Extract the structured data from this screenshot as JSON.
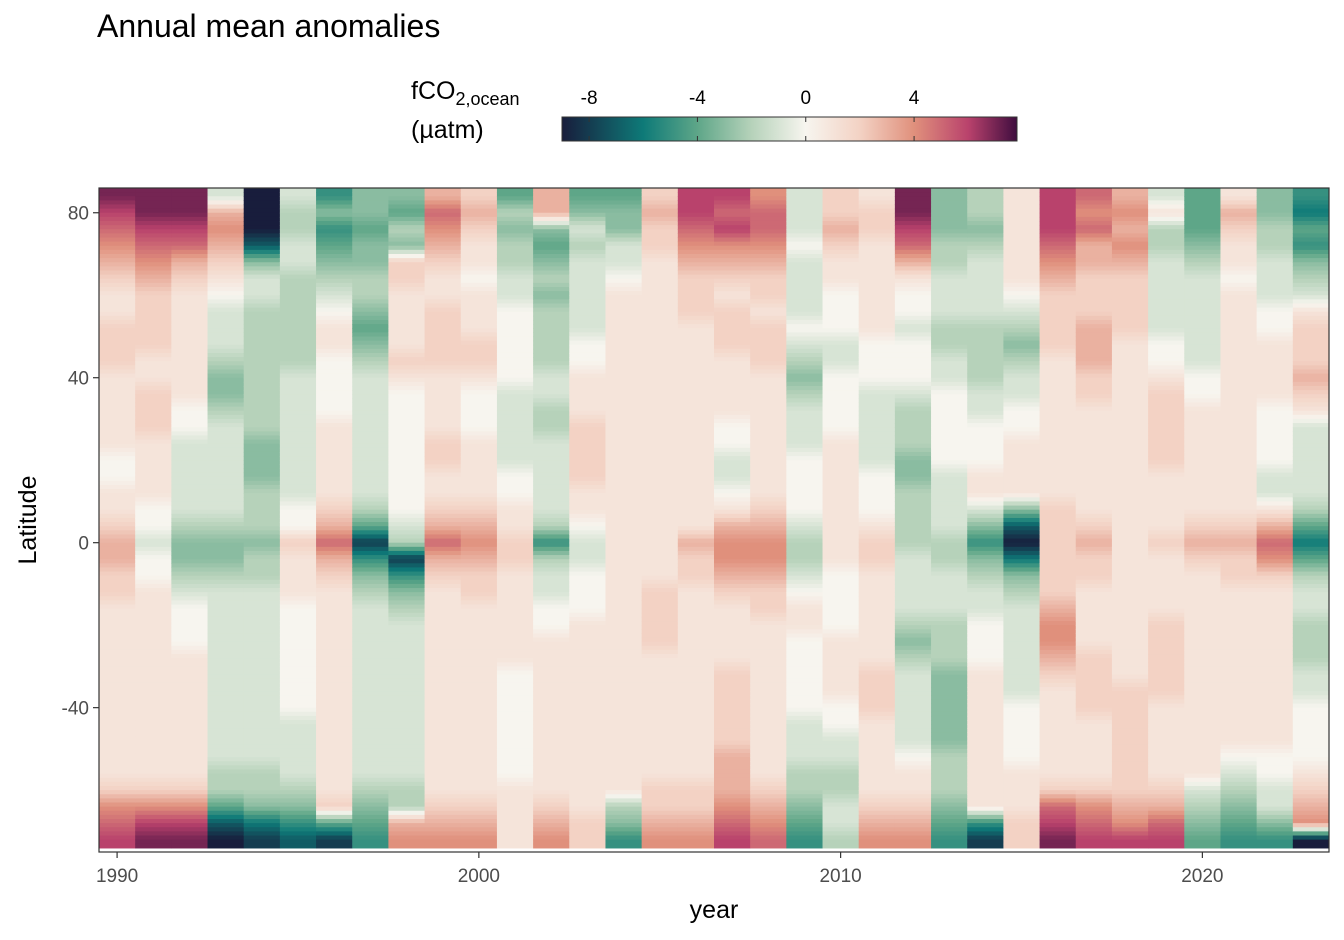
{
  "title": "Annual mean anomalies",
  "legend": {
    "title_main": "fCO",
    "title_sub": "2,ocean",
    "title_unit": "(µatm)",
    "ticks": [
      "-8",
      "-4",
      "0",
      "4"
    ],
    "range": [
      -9,
      7.8
    ]
  },
  "colors": {
    "scale": [
      "#181d3c",
      "#0e7a78",
      "#5ea688",
      "#b6d2ba",
      "#f7f5ef",
      "#f3d2c4",
      "#e0907c",
      "#b9426c",
      "#3f0d3f"
    ],
    "scale_values": [
      -9,
      -6,
      -4,
      -2,
      0,
      2,
      4,
      6,
      7.8
    ]
  },
  "chart_data": {
    "type": "heatmap",
    "title": "Annual mean anomalies",
    "xlabel": "year",
    "ylabel": "Latitude",
    "xlim": [
      1989.5,
      2023.5
    ],
    "ylim": [
      -75,
      86
    ],
    "x_ticks": [
      1990,
      2000,
      2010,
      2020
    ],
    "y_ticks": [
      80,
      40,
      0,
      -40
    ],
    "x": [
      1990,
      1991,
      1992,
      1993,
      1994,
      1995,
      1996,
      1997,
      1998,
      1999,
      2000,
      2001,
      2002,
      2003,
      2004,
      2005,
      2006,
      2007,
      2008,
      2009,
      2010,
      2011,
      2012,
      2013,
      2014,
      2015,
      2016,
      2017,
      2018,
      2019,
      2020,
      2021,
      2022,
      2023
    ],
    "lat": [
      84,
      80,
      76,
      72,
      68,
      64,
      60,
      56,
      52,
      48,
      44,
      40,
      36,
      32,
      28,
      24,
      20,
      16,
      12,
      8,
      4,
      0,
      -4,
      -8,
      -12,
      -16,
      -20,
      -24,
      -28,
      -32,
      -36,
      -40,
      -44,
      -48,
      -52,
      -56,
      -60,
      -64,
      -68,
      -72
    ],
    "values": [
      [
        7,
        7,
        7,
        -1,
        -9,
        -1,
        -5,
        -3,
        -3,
        3,
        2,
        -4,
        3,
        -4,
        -4,
        2,
        6,
        6,
        4,
        -1,
        2,
        1,
        7,
        -3,
        -2,
        1,
        6,
        5,
        3,
        -1,
        -4,
        1,
        -3,
        -5
      ],
      [
        6,
        7,
        7,
        3,
        -9,
        -2,
        -3,
        -3,
        -4,
        5,
        3,
        -2,
        3,
        -3,
        -3,
        3,
        6,
        5,
        5,
        -1,
        2,
        2,
        7,
        -3,
        -2,
        1,
        6,
        4,
        4,
        1,
        -4,
        3,
        -3,
        -6
      ],
      [
        5,
        6,
        6,
        4,
        -9,
        -2,
        -5,
        -4,
        -2,
        4,
        2,
        -3,
        -3,
        -1,
        -3,
        2,
        5,
        6,
        5,
        -1,
        3,
        2,
        6,
        -3,
        -3,
        1,
        6,
        5,
        3,
        -2,
        -4,
        2,
        -2,
        -4
      ],
      [
        4,
        5,
        5,
        3,
        -7,
        -1,
        -4,
        -3,
        -3,
        3,
        1,
        -2,
        -4,
        -2,
        -1,
        2,
        4,
        4,
        4,
        0,
        2,
        1,
        5,
        -2,
        -2,
        1,
        5,
        3,
        4,
        -2,
        -3,
        1,
        -2,
        -5
      ],
      [
        3,
        4,
        3,
        2,
        -3,
        -1,
        -3,
        -3,
        2,
        2,
        1,
        -2,
        -3,
        -1,
        -1,
        1,
        3,
        3,
        3,
        -1,
        1,
        1,
        3,
        -2,
        -1,
        1,
        4,
        3,
        3,
        -1,
        -2,
        1,
        -1,
        -3
      ],
      [
        2,
        3,
        2,
        1,
        -1,
        -2,
        -2,
        -2,
        2,
        1,
        0,
        -1,
        -2,
        -1,
        0,
        1,
        2,
        2,
        2,
        -1,
        1,
        1,
        1,
        -1,
        -1,
        1,
        3,
        2,
        2,
        -1,
        -1,
        0,
        -1,
        -2
      ],
      [
        1,
        2,
        1,
        0,
        -1,
        -2,
        -1,
        -2,
        1,
        1,
        1,
        -1,
        -3,
        -1,
        1,
        1,
        2,
        1,
        2,
        -1,
        0,
        1,
        0,
        -1,
        -1,
        0,
        2,
        2,
        2,
        -1,
        -1,
        1,
        -1,
        -1
      ],
      [
        1,
        2,
        1,
        -1,
        -2,
        -2,
        0,
        -3,
        1,
        2,
        1,
        0,
        -2,
        -1,
        1,
        1,
        2,
        2,
        1,
        -1,
        0,
        1,
        0,
        -1,
        -1,
        -1,
        2,
        2,
        2,
        -1,
        -1,
        1,
        0,
        1
      ],
      [
        2,
        2,
        1,
        -1,
        -2,
        -2,
        1,
        -4,
        1,
        2,
        1,
        0,
        -2,
        -1,
        1,
        1,
        1,
        2,
        2,
        0,
        0,
        1,
        -1,
        -2,
        -2,
        -2,
        2,
        3,
        2,
        -1,
        -1,
        1,
        0,
        2
      ],
      [
        2,
        2,
        1,
        -1,
        -2,
        -2,
        1,
        -3,
        1,
        2,
        2,
        0,
        -2,
        0,
        1,
        1,
        1,
        2,
        2,
        -1,
        -1,
        0,
        0,
        -2,
        -2,
        -3,
        2,
        3,
        1,
        0,
        -1,
        1,
        1,
        2
      ],
      [
        2,
        1,
        1,
        -2,
        -2,
        -2,
        0,
        -2,
        2,
        2,
        2,
        0,
        -2,
        0,
        1,
        1,
        1,
        1,
        2,
        -2,
        -1,
        0,
        0,
        -1,
        -2,
        -2,
        1,
        3,
        1,
        0,
        -1,
        1,
        1,
        2
      ],
      [
        1,
        1,
        1,
        -3,
        -2,
        -1,
        0,
        -1,
        1,
        1,
        1,
        0,
        -1,
        1,
        1,
        1,
        1,
        1,
        1,
        -3,
        0,
        0,
        0,
        -1,
        -2,
        -1,
        1,
        2,
        1,
        1,
        0,
        1,
        1,
        3
      ],
      [
        1,
        2,
        1,
        -3,
        -2,
        -1,
        0,
        -1,
        0,
        1,
        0,
        -1,
        -1,
        1,
        1,
        1,
        1,
        1,
        1,
        -2,
        0,
        -1,
        -1,
        0,
        -1,
        -1,
        1,
        2,
        1,
        2,
        0,
        1,
        1,
        2
      ],
      [
        1,
        2,
        0,
        -2,
        -2,
        -1,
        0,
        -1,
        0,
        1,
        0,
        -1,
        -2,
        1,
        1,
        1,
        1,
        1,
        1,
        -1,
        0,
        -1,
        -2,
        0,
        -1,
        0,
        1,
        1,
        1,
        2,
        1,
        1,
        0,
        1
      ],
      [
        1,
        2,
        0,
        -1,
        -2,
        -1,
        1,
        -1,
        0,
        1,
        0,
        -1,
        -2,
        2,
        1,
        1,
        1,
        0,
        1,
        -1,
        0,
        -1,
        -2,
        0,
        0,
        0,
        1,
        1,
        1,
        2,
        1,
        1,
        0,
        -1
      ],
      [
        1,
        1,
        -1,
        -1,
        -3,
        -1,
        1,
        -1,
        0,
        2,
        1,
        -1,
        -1,
        2,
        1,
        1,
        1,
        0,
        1,
        -1,
        1,
        -1,
        -2,
        0,
        0,
        1,
        1,
        1,
        1,
        2,
        1,
        1,
        0,
        -1
      ],
      [
        0,
        1,
        -1,
        -1,
        -3,
        -1,
        1,
        -1,
        0,
        2,
        1,
        -1,
        -1,
        2,
        1,
        1,
        1,
        -1,
        1,
        0,
        1,
        -1,
        -3,
        0,
        0,
        1,
        1,
        1,
        1,
        2,
        1,
        1,
        0,
        -1
      ],
      [
        0,
        1,
        -1,
        -1,
        -3,
        -1,
        1,
        -1,
        0,
        1,
        1,
        0,
        -1,
        2,
        1,
        1,
        1,
        -1,
        1,
        0,
        1,
        0,
        -3,
        -1,
        1,
        1,
        1,
        1,
        1,
        1,
        1,
        1,
        -1,
        -1
      ],
      [
        1,
        1,
        -1,
        -1,
        -2,
        -1,
        1,
        -1,
        0,
        1,
        1,
        0,
        -1,
        1,
        1,
        1,
        1,
        0,
        1,
        0,
        1,
        0,
        -2,
        -1,
        1,
        1,
        1,
        1,
        1,
        1,
        1,
        1,
        -1,
        -1
      ],
      [
        1,
        0,
        -1,
        -1,
        -2,
        0,
        2,
        -2,
        0,
        2,
        2,
        1,
        -1,
        1,
        1,
        1,
        1,
        1,
        2,
        0,
        1,
        0,
        -2,
        -1,
        -1,
        -3,
        2,
        1,
        1,
        1,
        1,
        1,
        1,
        -2
      ],
      [
        2,
        0,
        -2,
        -2,
        -2,
        0,
        3,
        -4,
        -1,
        3,
        3,
        1,
        -2,
        0,
        1,
        1,
        1,
        3,
        3,
        -1,
        1,
        1,
        -2,
        -1,
        -3,
        -7,
        2,
        2,
        1,
        1,
        2,
        2,
        3,
        -4
      ],
      [
        3,
        -1,
        -3,
        -3,
        -3,
        2,
        5,
        -8,
        -2,
        5,
        4,
        2,
        -5,
        -1,
        1,
        1,
        3,
        4,
        4,
        -2,
        1,
        2,
        -2,
        -2,
        -5,
        -9,
        2,
        3,
        1,
        2,
        3,
        3,
        5,
        -6
      ],
      [
        3,
        0,
        -3,
        -3,
        -2,
        1,
        3,
        -5,
        -8,
        3,
        3,
        2,
        -2,
        -1,
        1,
        1,
        2,
        4,
        4,
        -2,
        1,
        2,
        -1,
        -2,
        -3,
        -6,
        2,
        2,
        1,
        1,
        2,
        2,
        4,
        -4
      ],
      [
        2,
        0,
        -2,
        -2,
        -2,
        1,
        2,
        -3,
        -5,
        2,
        2,
        1,
        -1,
        0,
        1,
        1,
        2,
        3,
        3,
        -1,
        0,
        1,
        -1,
        -1,
        -2,
        -3,
        2,
        2,
        1,
        1,
        1,
        2,
        2,
        -2
      ],
      [
        2,
        1,
        -1,
        -1,
        -1,
        1,
        1,
        -2,
        -3,
        1,
        2,
        1,
        -1,
        0,
        1,
        2,
        1,
        2,
        2,
        0,
        0,
        1,
        -1,
        -1,
        -1,
        -2,
        2,
        1,
        1,
        1,
        1,
        1,
        1,
        -1
      ],
      [
        1,
        1,
        0,
        -1,
        -1,
        0,
        1,
        -1,
        -2,
        1,
        1,
        1,
        0,
        0,
        1,
        2,
        1,
        1,
        2,
        1,
        0,
        1,
        -1,
        -1,
        -1,
        -1,
        3,
        1,
        1,
        1,
        1,
        1,
        1,
        -1
      ],
      [
        1,
        1,
        0,
        -1,
        -1,
        0,
        1,
        -1,
        -1,
        1,
        1,
        1,
        0,
        1,
        1,
        2,
        1,
        1,
        1,
        1,
        0,
        1,
        -2,
        -2,
        0,
        -1,
        4,
        1,
        1,
        2,
        1,
        1,
        1,
        -2
      ],
      [
        1,
        1,
        0,
        -1,
        -1,
        0,
        1,
        -1,
        -1,
        1,
        1,
        1,
        1,
        1,
        1,
        2,
        1,
        1,
        1,
        0,
        1,
        1,
        -3,
        -2,
        0,
        -1,
        4,
        1,
        1,
        2,
        1,
        1,
        1,
        -2
      ],
      [
        1,
        1,
        1,
        -1,
        -1,
        0,
        1,
        -1,
        -1,
        1,
        1,
        1,
        1,
        1,
        1,
        1,
        1,
        1,
        1,
        0,
        1,
        1,
        -2,
        -2,
        0,
        -1,
        3,
        2,
        1,
        2,
        1,
        1,
        1,
        -2
      ],
      [
        1,
        1,
        1,
        -1,
        -1,
        0,
        1,
        -1,
        -1,
        1,
        1,
        0,
        1,
        1,
        1,
        1,
        1,
        2,
        1,
        0,
        1,
        2,
        -1,
        -3,
        1,
        -1,
        2,
        2,
        1,
        2,
        1,
        1,
        1,
        -1
      ],
      [
        1,
        1,
        1,
        -1,
        -1,
        0,
        1,
        -1,
        -1,
        1,
        1,
        0,
        1,
        1,
        1,
        1,
        1,
        2,
        1,
        0,
        1,
        2,
        -1,
        -3,
        1,
        -1,
        1,
        2,
        2,
        2,
        1,
        1,
        1,
        -1
      ],
      [
        1,
        1,
        1,
        -1,
        -1,
        0,
        1,
        -1,
        -1,
        1,
        1,
        0,
        1,
        1,
        1,
        1,
        1,
        2,
        1,
        0,
        0,
        2,
        -1,
        -3,
        1,
        0,
        1,
        2,
        2,
        1,
        1,
        1,
        1,
        0
      ],
      [
        1,
        1,
        1,
        -1,
        -1,
        -1,
        1,
        -1,
        -1,
        1,
        1,
        0,
        1,
        1,
        1,
        1,
        1,
        2,
        1,
        -1,
        0,
        1,
        -1,
        -3,
        1,
        0,
        1,
        1,
        2,
        1,
        1,
        1,
        1,
        0
      ],
      [
        1,
        1,
        1,
        -1,
        -1,
        -1,
        1,
        -1,
        -1,
        1,
        1,
        0,
        1,
        1,
        1,
        1,
        1,
        2,
        1,
        -1,
        -1,
        1,
        -1,
        -3,
        1,
        0,
        1,
        1,
        2,
        1,
        1,
        1,
        1,
        0
      ],
      [
        1,
        1,
        1,
        -1,
        -1,
        -1,
        1,
        -1,
        -1,
        1,
        1,
        0,
        1,
        1,
        1,
        1,
        1,
        3,
        1,
        -1,
        -1,
        1,
        0,
        -2,
        1,
        0,
        1,
        1,
        2,
        1,
        1,
        0,
        0,
        0
      ],
      [
        1,
        1,
        1,
        -2,
        -2,
        -1,
        1,
        -1,
        -1,
        1,
        1,
        0,
        1,
        1,
        1,
        1,
        1,
        3,
        1,
        -2,
        -2,
        1,
        1,
        -2,
        1,
        1,
        1,
        1,
        2,
        1,
        1,
        -1,
        0,
        1
      ],
      [
        2,
        2,
        2,
        -2,
        -2,
        -2,
        1,
        -2,
        -2,
        1,
        1,
        1,
        1,
        1,
        1,
        2,
        2,
        3,
        2,
        -2,
        -2,
        1,
        1,
        -2,
        1,
        1,
        2,
        2,
        2,
        2,
        -1,
        -2,
        -1,
        2
      ],
      [
        4,
        4,
        4,
        -4,
        -3,
        -3,
        2,
        -3,
        -2,
        2,
        2,
        1,
        2,
        1,
        -2,
        2,
        2,
        4,
        3,
        -3,
        -1,
        2,
        2,
        -3,
        1,
        1,
        5,
        4,
        3,
        3,
        -2,
        -3,
        -1,
        3
      ],
      [
        5,
        6,
        6,
        -7,
        -6,
        -5,
        -4,
        -4,
        3,
        3,
        3,
        1,
        3,
        2,
        -3,
        3,
        3,
        5,
        4,
        -4,
        -1,
        3,
        3,
        -4,
        -5,
        2,
        6,
        5,
        4,
        5,
        -3,
        -4,
        -3,
        4
      ],
      [
        6,
        7,
        7,
        -9,
        -8,
        -7,
        -8,
        -5,
        4,
        4,
        4,
        1,
        4,
        2,
        -5,
        4,
        4,
        6,
        5,
        -5,
        -2,
        4,
        4,
        -5,
        -8,
        2,
        7,
        6,
        6,
        6,
        -4,
        -5,
        -5,
        -9
      ]
    ]
  }
}
